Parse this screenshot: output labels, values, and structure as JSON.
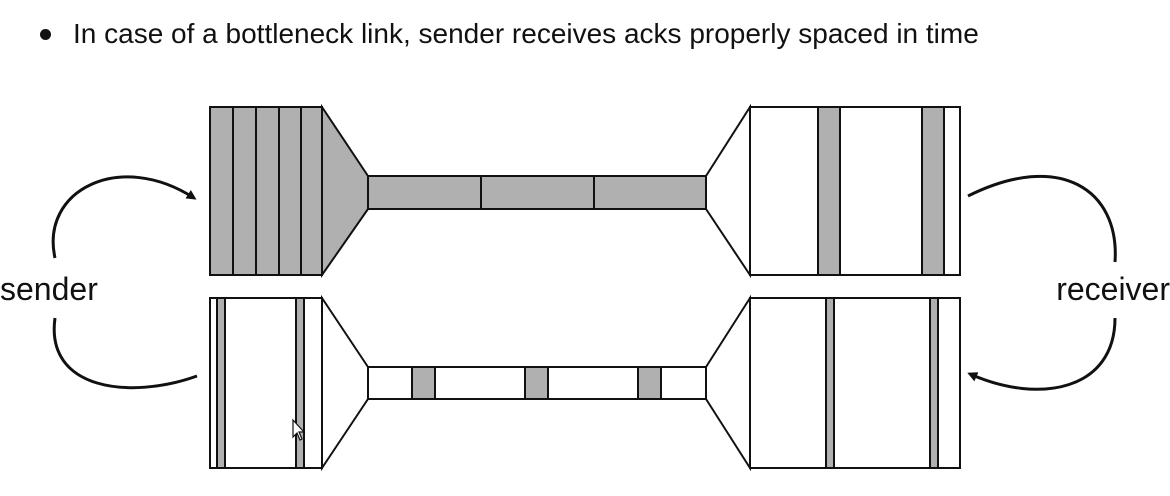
{
  "slide": {
    "bullet": "In case of a bottleneck link, sender receives acks properly spaced in time"
  },
  "labels": {
    "sender": "sender",
    "receiver": "receiver"
  },
  "colors": {
    "packet_fill": "#b0b0b0",
    "stroke": "#111111",
    "background": "#ffffff"
  },
  "icons": {
    "cursor": "mouse-pointer-icon"
  }
}
